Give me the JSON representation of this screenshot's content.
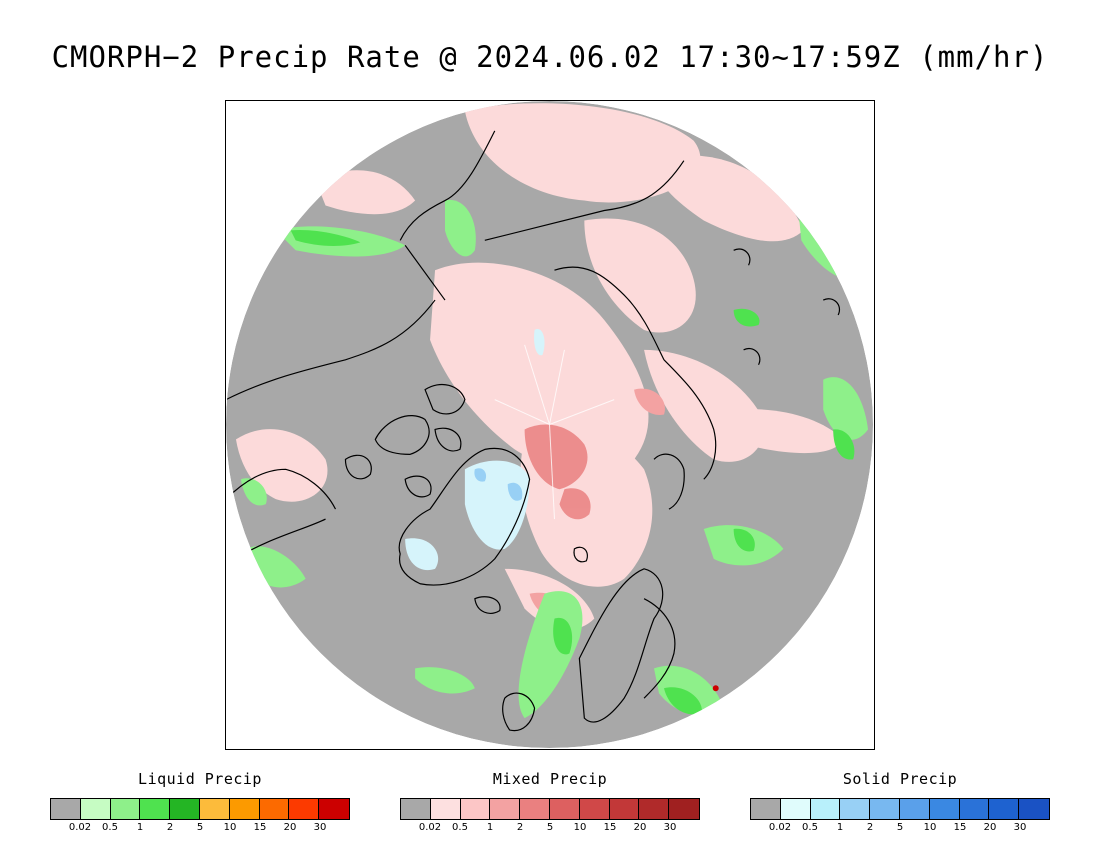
{
  "title": "CMORPH−2 Precip Rate @ 2024.06.02 17:30~17:59Z (mm/hr)",
  "map": {
    "projection": "north-polar-stereographic",
    "colors": {
      "background_gray": "#a8a8a8",
      "coastline": "#000000",
      "ice_blue": "#d6f4fb"
    }
  },
  "legends": [
    {
      "title": "Liquid Precip",
      "colors": [
        "#a8a8a8",
        "#c6fcc3",
        "#8ef08a",
        "#4fe24f",
        "#24b524",
        "#fcbb3b",
        "#fc9a00",
        "#fc6a00",
        "#fc3a00",
        "#cc0000"
      ],
      "ticks": [
        "0.02",
        "0.5",
        "1",
        "2",
        "5",
        "10",
        "15",
        "20",
        "30"
      ]
    },
    {
      "title": "Mixed Precip",
      "colors": [
        "#a8a8a8",
        "#fde0e0",
        "#fcc6c6",
        "#f3a2a2",
        "#ea8080",
        "#dd6060",
        "#d04848",
        "#c23838",
        "#b02a2a",
        "#a02020"
      ],
      "ticks": [
        "0.02",
        "0.5",
        "1",
        "2",
        "5",
        "10",
        "15",
        "20",
        "30"
      ]
    },
    {
      "title": "Solid Precip",
      "colors": [
        "#a8a8a8",
        "#e0fcfc",
        "#b8f0fb",
        "#98d0f5",
        "#78b8f0",
        "#5aa0ea",
        "#3a88e2",
        "#2a72d8",
        "#1e62d0",
        "#1a52c4"
      ],
      "ticks": [
        "0.02",
        "0.5",
        "1",
        "2",
        "5",
        "10",
        "15",
        "20",
        "30"
      ]
    }
  ]
}
